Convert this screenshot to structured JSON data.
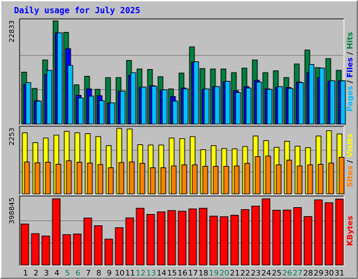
{
  "chart_data": {
    "type": "bar",
    "title": "Daily usage for July 2025",
    "categories": [
      "1",
      "2",
      "3",
      "4",
      "5",
      "6",
      "7",
      "8",
      "9",
      "10",
      "11",
      "12",
      "13",
      "14",
      "15",
      "16",
      "17",
      "18",
      "19",
      "20",
      "21",
      "22",
      "23",
      "24",
      "25",
      "26",
      "27",
      "28",
      "29",
      "30",
      "31"
    ],
    "weekend_days": [
      "5",
      "6",
      "12",
      "13",
      "19",
      "20",
      "26",
      "27"
    ],
    "panels": [
      {
        "id": "hits-files-pages",
        "ymax": 22833,
        "ymax_label": "22833",
        "right_label": [
          {
            "text": "Pages",
            "color": "#00c0ff"
          },
          {
            "text": " / ",
            "color": "#000000"
          },
          {
            "text": "Files",
            "color": "#0000ff"
          },
          {
            "text": " / ",
            "color": "#000000"
          },
          {
            "text": "Hits",
            "color": "#008040"
          }
        ],
        "series": [
          {
            "name": "Hits",
            "color": "#008040",
            "values": [
              11500,
              7900,
              14200,
              22833,
              20300,
              8700,
              10600,
              7700,
              10300,
              10300,
              14100,
              12200,
              12100,
              10500,
              7800,
              11300,
              17100,
              12300,
              12200,
              12200,
              11400,
              12400,
              14200,
              11400,
              11800,
              10300,
              13300,
              16400,
              12500,
              14500,
              11900
            ]
          },
          {
            "name": "Files",
            "color": "#0000ff",
            "values": [
              8800,
              5200,
              11000,
              20200,
              16700,
              6400,
              7800,
              6300,
              4700,
              7300,
              10800,
              8200,
              8500,
              7600,
              6100,
              8000,
              13700,
              7700,
              8300,
              9400,
              7400,
              8300,
              9700,
              7800,
              8200,
              8100,
              9300,
              11400,
              10300,
              9500,
              9600
            ]
          },
          {
            "name": "Pages",
            "color": "#00c0ff",
            "values": [
              9200,
              5100,
              11900,
              20200,
              13000,
              5800,
              6200,
              5200,
              4700,
              7300,
              11400,
              8200,
              8400,
              7600,
              5100,
              7800,
              13800,
              7800,
              8300,
              9500,
              7000,
              8000,
              9300,
              7700,
              8300,
              7900,
              9200,
              13200,
              12400,
              9600,
              9600
            ]
          }
        ]
      },
      {
        "id": "visits-sites",
        "ymax": 2253,
        "ymax_label": "2253",
        "right_label": [
          {
            "text": "Sites",
            "color": "#ff8000"
          },
          {
            "text": " / ",
            "color": "#000000"
          },
          {
            "text": "Visits",
            "color": "#ffff00"
          }
        ],
        "series": [
          {
            "name": "Visits",
            "color": "#ffff00",
            "values": [
              2100,
              1760,
              1920,
              2020,
              2150,
              2100,
              2070,
              1970,
              1660,
              2250,
              2230,
              1690,
              1680,
              1680,
              1920,
              1900,
              1970,
              1520,
              1660,
              1560,
              1550,
              1630,
              1990,
              1830,
              1600,
              1810,
              1640,
              1590,
              1990,
              2170,
              2060
            ]
          },
          {
            "name": "Sites",
            "color": "#ff8000",
            "values": [
              1100,
              1070,
              1090,
              1020,
              1140,
              1090,
              1060,
              1010,
              900,
              1080,
              1100,
              1050,
              900,
              900,
              960,
              1000,
              1000,
              950,
              950,
              950,
              960,
              1050,
              1280,
              1300,
              1000,
              1160,
              960,
              1000,
              1020,
              1060,
              1260
            ]
          }
        ]
      },
      {
        "id": "kbytes",
        "ymax": 398845,
        "ymax_label": "398845",
        "right_label": [
          {
            "text": "KBytes",
            "color": "#ff0000"
          }
        ],
        "series": [
          {
            "name": "KBytes",
            "color": "#ff0000",
            "values": [
              247000,
              189000,
              175000,
              398845,
              183000,
              187000,
              283000,
              237000,
              156000,
              225000,
              284000,
              342000,
              305000,
              320000,
              328000,
              324000,
              338000,
              342000,
              294000,
              291000,
              300000,
              334000,
              355000,
              398845,
              330000,
              331000,
              346000,
              292000,
              392000,
              375000,
              397000
            ]
          }
        ]
      }
    ],
    "colors": {
      "background": "#c0c0c0",
      "plot_background": "#c0c0c0",
      "grid": "#808080",
      "title": "#0000ff",
      "weekday_label": "#000000",
      "weekend_label": "#00805c"
    }
  }
}
